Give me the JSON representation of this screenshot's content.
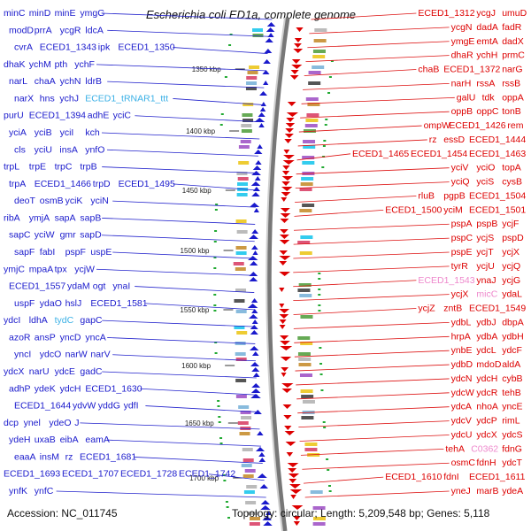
{
  "title": "Escherichia coli ED1a, complete genome",
  "footer": {
    "accession": "Accession: NC_011745",
    "summary": "Topology: circular; Length: 5,209,548 bp; Genes: 5,118"
  },
  "colors": {
    "forward": "#1a1acc",
    "reverse": "#dd0000",
    "rna": "#3ab0e6",
    "pseudo": "#ee88cc"
  },
  "ticks": [
    "1350 kbp",
    "1400 kbp",
    "1450 kbp",
    "1500 kbp",
    "1550 kbp",
    "1600 kbp",
    "1650 kbp",
    "1700 kbp"
  ],
  "left_labels": [
    {
      "t": "minC",
      "c": "blue"
    },
    {
      "t": "minD",
      "c": "blue"
    },
    {
      "t": "minE",
      "c": "blue"
    },
    {
      "t": "ymgG",
      "c": "blue"
    },
    {
      "t": "modD",
      "c": "blue"
    },
    {
      "t": "prrA",
      "c": "blue"
    },
    {
      "t": "ycgR",
      "c": "blue"
    },
    {
      "t": "ldcA",
      "c": "blue"
    },
    {
      "t": "cvrA",
      "c": "blue"
    },
    {
      "t": "ECED1_1343",
      "c": "blue"
    },
    {
      "t": "ipk",
      "c": "blue"
    },
    {
      "t": "ECED1_1350",
      "c": "blue"
    },
    {
      "t": "dhaK",
      "c": "blue"
    },
    {
      "t": "ychM",
      "c": "blue"
    },
    {
      "t": "pth",
      "c": "blue"
    },
    {
      "t": "ychF",
      "c": "blue"
    },
    {
      "t": "narL",
      "c": "blue"
    },
    {
      "t": "chaA",
      "c": "blue"
    },
    {
      "t": "ychN",
      "c": "blue"
    },
    {
      "t": "ldrB",
      "c": "blue"
    },
    {
      "t": "narX",
      "c": "blue"
    },
    {
      "t": "hns",
      "c": "blue"
    },
    {
      "t": "ychJ",
      "c": "blue"
    },
    {
      "t": "ECED1_tRNAR1_ttt",
      "c": "cyan"
    },
    {
      "t": "purU",
      "c": "blue"
    },
    {
      "t": "ECED1_1394",
      "c": "blue"
    },
    {
      "t": "adhE",
      "c": "blue"
    },
    {
      "t": "yciC",
      "c": "blue"
    },
    {
      "t": "yciA",
      "c": "blue"
    },
    {
      "t": "yciB",
      "c": "blue"
    },
    {
      "t": "yciI",
      "c": "blue"
    },
    {
      "t": "kch",
      "c": "blue"
    },
    {
      "t": "cls",
      "c": "blue"
    },
    {
      "t": "yciU",
      "c": "blue"
    },
    {
      "t": "insA",
      "c": "blue"
    },
    {
      "t": "ynfO",
      "c": "blue"
    },
    {
      "t": "trpL",
      "c": "blue"
    },
    {
      "t": "trpE",
      "c": "blue"
    },
    {
      "t": "trpC",
      "c": "blue"
    },
    {
      "t": "trpB",
      "c": "blue"
    },
    {
      "t": "trpA",
      "c": "blue"
    },
    {
      "t": "ECED1_1466",
      "c": "blue"
    },
    {
      "t": "trpD",
      "c": "blue"
    },
    {
      "t": "ECED1_1495",
      "c": "blue"
    },
    {
      "t": "deoT",
      "c": "blue"
    },
    {
      "t": "osmB",
      "c": "blue"
    },
    {
      "t": "yciK",
      "c": "blue"
    },
    {
      "t": "yciN",
      "c": "blue"
    },
    {
      "t": "ribA",
      "c": "blue"
    },
    {
      "t": "ymjA",
      "c": "blue"
    },
    {
      "t": "sapA",
      "c": "blue"
    },
    {
      "t": "sapB",
      "c": "blue"
    },
    {
      "t": "sapC",
      "c": "blue"
    },
    {
      "t": "yciW",
      "c": "blue"
    },
    {
      "t": "gmr",
      "c": "blue"
    },
    {
      "t": "sapD",
      "c": "blue"
    },
    {
      "t": "sapF",
      "c": "blue"
    },
    {
      "t": "fabI",
      "c": "blue"
    },
    {
      "t": "pspF",
      "c": "blue"
    },
    {
      "t": "uspE",
      "c": "blue"
    },
    {
      "t": "ymjC",
      "c": "blue"
    },
    {
      "t": "mpaA",
      "c": "blue"
    },
    {
      "t": "tpx",
      "c": "blue"
    },
    {
      "t": "ycjW",
      "c": "blue"
    },
    {
      "t": "ECED1_1557",
      "c": "blue"
    },
    {
      "t": "ydaM",
      "c": "blue"
    },
    {
      "t": "ogt",
      "c": "blue"
    },
    {
      "t": "ynaI",
      "c": "blue"
    },
    {
      "t": "uspF",
      "c": "blue"
    },
    {
      "t": "ydaO",
      "c": "blue"
    },
    {
      "t": "hslJ",
      "c": "blue"
    },
    {
      "t": "ECED1_1581",
      "c": "blue"
    },
    {
      "t": "ydcI",
      "c": "blue"
    },
    {
      "t": "ldhA",
      "c": "blue"
    },
    {
      "t": "tydC",
      "c": "cyan"
    },
    {
      "t": "gapC",
      "c": "blue"
    },
    {
      "t": "azoR",
      "c": "blue"
    },
    {
      "t": "ansP",
      "c": "blue"
    },
    {
      "t": "yncD",
      "c": "blue"
    },
    {
      "t": "yncA",
      "c": "blue"
    },
    {
      "t": "yncI",
      "c": "blue"
    },
    {
      "t": "ydcO",
      "c": "blue"
    },
    {
      "t": "narW",
      "c": "blue"
    },
    {
      "t": "narV",
      "c": "blue"
    },
    {
      "t": "ydcX",
      "c": "blue"
    },
    {
      "t": "narU",
      "c": "blue"
    },
    {
      "t": "ydcE",
      "c": "blue"
    },
    {
      "t": "gadC",
      "c": "blue"
    },
    {
      "t": "adhP",
      "c": "blue"
    },
    {
      "t": "ydeK",
      "c": "blue"
    },
    {
      "t": "ydcH",
      "c": "blue"
    },
    {
      "t": "ECED1_1630",
      "c": "blue"
    },
    {
      "t": "ECED1_1644",
      "c": "blue"
    },
    {
      "t": "ydvW",
      "c": "blue"
    },
    {
      "t": "yddG",
      "c": "blue"
    },
    {
      "t": "ydfI",
      "c": "blue"
    },
    {
      "t": "dcp",
      "c": "blue"
    },
    {
      "t": "ynel",
      "c": "blue"
    },
    {
      "t": "ydeO",
      "c": "blue"
    },
    {
      "t": "J",
      "c": "blue"
    },
    {
      "t": "ydeH",
      "c": "blue"
    },
    {
      "t": "uxaB",
      "c": "blue"
    },
    {
      "t": "eibA",
      "c": "blue"
    },
    {
      "t": "eamA",
      "c": "blue"
    },
    {
      "t": "eaaA",
      "c": "blue"
    },
    {
      "t": "insM",
      "c": "blue"
    },
    {
      "t": "rz",
      "c": "blue"
    },
    {
      "t": "ECED1_1681",
      "c": "blue"
    },
    {
      "t": "ECED1_1693",
      "c": "blue"
    },
    {
      "t": "ECED1_1707",
      "c": "blue"
    },
    {
      "t": "ECED1_1728",
      "c": "blue"
    },
    {
      "t": "ECED1_1742",
      "c": "blue"
    },
    {
      "t": "ynfK",
      "c": "blue"
    },
    {
      "t": "ynfC",
      "c": "blue"
    }
  ],
  "right_labels": [
    {
      "t": "ECED1_1312",
      "c": "red"
    },
    {
      "t": "ycgJ",
      "c": "red"
    },
    {
      "t": "umuD",
      "c": "red"
    },
    {
      "t": "ycgN",
      "c": "red"
    },
    {
      "t": "dadA",
      "c": "red"
    },
    {
      "t": "fadR",
      "c": "red"
    },
    {
      "t": "ymgE",
      "c": "red"
    },
    {
      "t": "emtA",
      "c": "red"
    },
    {
      "t": "dadX",
      "c": "red"
    },
    {
      "t": "dhaR",
      "c": "red"
    },
    {
      "t": "ychH",
      "c": "red"
    },
    {
      "t": "prmC",
      "c": "red"
    },
    {
      "t": "chaB",
      "c": "red"
    },
    {
      "t": "ECED1_1372",
      "c": "red"
    },
    {
      "t": "narG",
      "c": "red"
    },
    {
      "t": "narH",
      "c": "red"
    },
    {
      "t": "rssA",
      "c": "red"
    },
    {
      "t": "rssB",
      "c": "red"
    },
    {
      "t": "galU",
      "c": "red"
    },
    {
      "t": "tdk",
      "c": "red"
    },
    {
      "t": "oppA",
      "c": "red"
    },
    {
      "t": "oppB",
      "c": "red"
    },
    {
      "t": "oppC",
      "c": "red"
    },
    {
      "t": "tonB",
      "c": "red"
    },
    {
      "t": "ompW",
      "c": "red"
    },
    {
      "t": "ECED1_1426",
      "c": "red"
    },
    {
      "t": "rem",
      "c": "red"
    },
    {
      "t": "rz",
      "c": "red"
    },
    {
      "t": "essD",
      "c": "red"
    },
    {
      "t": "ECED1_1444",
      "c": "red"
    },
    {
      "t": "ECED1_1465",
      "c": "red"
    },
    {
      "t": "ECED1_1454",
      "c": "red"
    },
    {
      "t": "ECED1_1463",
      "c": "red"
    },
    {
      "t": "yciV",
      "c": "red"
    },
    {
      "t": "yciO",
      "c": "red"
    },
    {
      "t": "topA",
      "c": "red"
    },
    {
      "t": "yciQ",
      "c": "red"
    },
    {
      "t": "yciS",
      "c": "red"
    },
    {
      "t": "cysB",
      "c": "red"
    },
    {
      "t": "rluB",
      "c": "red"
    },
    {
      "t": "pgpB",
      "c": "red"
    },
    {
      "t": "ECED1_1504",
      "c": "red"
    },
    {
      "t": "ECED1_1500",
      "c": "red"
    },
    {
      "t": "yciM",
      "c": "red"
    },
    {
      "t": "ECED1_1501",
      "c": "red"
    },
    {
      "t": "pspA",
      "c": "red"
    },
    {
      "t": "pspB",
      "c": "red"
    },
    {
      "t": "ycjF",
      "c": "red"
    },
    {
      "t": "pspC",
      "c": "red"
    },
    {
      "t": "ycjS",
      "c": "red"
    },
    {
      "t": "pspD",
      "c": "red"
    },
    {
      "t": "pspE",
      "c": "red"
    },
    {
      "t": "ycjT",
      "c": "red"
    },
    {
      "t": "ycjX",
      "c": "red"
    },
    {
      "t": "tyrR",
      "c": "red"
    },
    {
      "t": "ycjU",
      "c": "red"
    },
    {
      "t": "ycjQ",
      "c": "red"
    },
    {
      "t": "ECED1_1543",
      "c": "pink"
    },
    {
      "t": "ynaJ",
      "c": "red"
    },
    {
      "t": "ycjG",
      "c": "red"
    },
    {
      "t": "ycjX",
      "c": "red"
    },
    {
      "t": "micC",
      "c": "pink"
    },
    {
      "t": "ydaL",
      "c": "red"
    },
    {
      "t": "ycjZ",
      "c": "red"
    },
    {
      "t": "zntB",
      "c": "red"
    },
    {
      "t": "ECED1_1549",
      "c": "red"
    },
    {
      "t": "ydbL",
      "c": "red"
    },
    {
      "t": "ydbJ",
      "c": "red"
    },
    {
      "t": "dbpA",
      "c": "red"
    },
    {
      "t": "hrpA",
      "c": "red"
    },
    {
      "t": "ydbA",
      "c": "red"
    },
    {
      "t": "ydbH",
      "c": "red"
    },
    {
      "t": "ynbE",
      "c": "red"
    },
    {
      "t": "ydcL",
      "c": "red"
    },
    {
      "t": "ydcF",
      "c": "red"
    },
    {
      "t": "ydbD",
      "c": "red"
    },
    {
      "t": "mdoD",
      "c": "red"
    },
    {
      "t": "aldA",
      "c": "red"
    },
    {
      "t": "ydcN",
      "c": "red"
    },
    {
      "t": "ydcH",
      "c": "red"
    },
    {
      "t": "cybB",
      "c": "red"
    },
    {
      "t": "ydcW",
      "c": "red"
    },
    {
      "t": "ydcR",
      "c": "red"
    },
    {
      "t": "tehB",
      "c": "red"
    },
    {
      "t": "ydcA",
      "c": "red"
    },
    {
      "t": "nhoA",
      "c": "red"
    },
    {
      "t": "yncE",
      "c": "red"
    },
    {
      "t": "ydcV",
      "c": "red"
    },
    {
      "t": "ydcP",
      "c": "red"
    },
    {
      "t": "rimL",
      "c": "red"
    },
    {
      "t": "ydcU",
      "c": "red"
    },
    {
      "t": "ydcX",
      "c": "red"
    },
    {
      "t": "ydcS",
      "c": "red"
    },
    {
      "t": "tehA",
      "c": "red"
    },
    {
      "t": "C0362",
      "c": "pink"
    },
    {
      "t": "fdnG",
      "c": "red"
    },
    {
      "t": "osmC",
      "c": "red"
    },
    {
      "t": "fdnH",
      "c": "red"
    },
    {
      "t": "ydcT",
      "c": "red"
    },
    {
      "t": "ECED1_1610",
      "c": "red"
    },
    {
      "t": "fdnI",
      "c": "red"
    },
    {
      "t": "ECED1_1611",
      "c": "red"
    },
    {
      "t": "yneJ",
      "c": "red"
    },
    {
      "t": "marB",
      "c": "red"
    },
    {
      "t": "ydeA",
      "c": "red"
    }
  ]
}
